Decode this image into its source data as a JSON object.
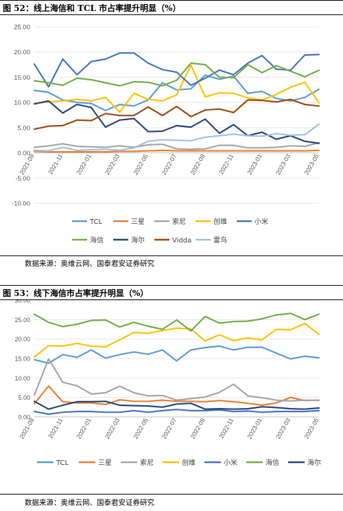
{
  "figures": [
    {
      "title": "图 52：线上海信和 TCL 市占率提升明显（%）",
      "source": "数据来源：奥维云网、国泰君安证券研究"
    },
    {
      "title": "图 53：线下海信市占率提升明显（%）",
      "source": "数据来源：奥维云网、国泰君安证券研究"
    }
  ],
  "chart_data": [
    {
      "type": "line",
      "title": "",
      "xlabel": "",
      "ylabel": "",
      "ylim": [
        -10,
        25
      ],
      "yticks": [
        "25.00",
        "20.00",
        "15.00",
        "10.00",
        "5.00",
        "0.00",
        "-5.00",
        "-10.00"
      ],
      "x": [
        "2021-09",
        "2021-10",
        "2021-11",
        "2021-12",
        "2022-01",
        "2022-02",
        "2022-03",
        "2022-04",
        "2022-05",
        "2022-06",
        "2022-07",
        "2022-08",
        "2022-09",
        "2022-10",
        "2022-11",
        "2022-12",
        "2023-01",
        "2023-02",
        "2023-03",
        "2023-04",
        "2023-05"
      ],
      "xtick_labels": [
        "2021-09",
        "2021-11",
        "2022-01",
        "2022-03",
        "2022-05",
        "2022-07",
        "2022-09",
        "2022-11",
        "2023-01",
        "2023-03",
        "2023-05"
      ],
      "grid": true,
      "legend_position": "bottom",
      "series": [
        {
          "name": "TCL",
          "color": "#5B9BD5",
          "values": [
            12.4,
            12.0,
            10.5,
            10.0,
            9.8,
            8.4,
            9.6,
            9.3,
            10.5,
            13.9,
            12.5,
            12.7,
            15.4,
            14.6,
            15.2,
            11.8,
            12.2,
            10.8,
            10.3,
            11.0,
            12.6
          ]
        },
        {
          "name": "三星",
          "color": "#ED7D31",
          "values": [
            0.3,
            0.2,
            0.2,
            0.2,
            0.2,
            0.2,
            0.3,
            0.3,
            0.4,
            0.5,
            0.4,
            0.4,
            0.4,
            0.4,
            0.4,
            0.4,
            0.4,
            0.4,
            0.4,
            0.4,
            0.5
          ]
        },
        {
          "name": "索尼",
          "color": "#A5A5A5",
          "values": [
            1.1,
            1.4,
            1.8,
            1.3,
            1.2,
            1.1,
            1.4,
            1.1,
            1.6,
            1.7,
            0.8,
            0.7,
            0.8,
            1.5,
            1.5,
            1.0,
            1.0,
            1.1,
            1.4,
            1.3,
            2.0
          ]
        },
        {
          "name": "创维",
          "color": "#FFC000",
          "values": [
            9.8,
            10.1,
            10.3,
            10.6,
            10.3,
            11.0,
            8.1,
            11.8,
            10.6,
            10.3,
            11.5,
            17.4,
            11.1,
            11.9,
            11.8,
            10.9,
            10.5,
            11.6,
            13.0,
            14.0,
            9.9
          ]
        },
        {
          "name": "小米",
          "color": "#4472C4",
          "values": [
            17.6,
            13.1,
            18.6,
            15.5,
            18.1,
            18.6,
            19.8,
            19.8,
            17.8,
            16.5,
            16.0,
            13.4,
            14.8,
            16.4,
            15.5,
            17.8,
            19.3,
            16.6,
            16.4,
            19.4,
            19.5
          ]
        },
        {
          "name": "海信",
          "color": "#70AD47",
          "values": [
            14.3,
            13.9,
            13.4,
            14.8,
            14.5,
            13.9,
            13.3,
            14.1,
            14.0,
            13.3,
            14.4,
            17.8,
            17.5,
            15.0,
            14.9,
            17.5,
            15.9,
            17.3,
            16.2,
            15.1,
            16.4
          ]
        },
        {
          "name": "海尔",
          "color": "#264478",
          "values": [
            9.7,
            10.3,
            7.9,
            9.6,
            9.0,
            5.1,
            6.5,
            6.8,
            4.2,
            4.3,
            5.4,
            5.1,
            6.7,
            3.9,
            5.6,
            3.4,
            4.1,
            2.7,
            3.4,
            2.3,
            1.9
          ]
        },
        {
          "name": "Vidda",
          "color": "#9E480E",
          "values": [
            4.7,
            5.3,
            5.4,
            6.5,
            6.4,
            7.8,
            7.4,
            7.4,
            9.1,
            7.4,
            9.2,
            7.2,
            8.5,
            8.7,
            8.0,
            10.5,
            10.4,
            10.1,
            10.6,
            9.6,
            9.3
          ]
        },
        {
          "name": "雷鸟",
          "color": "#9DC3E6",
          "values": [
            0.5,
            0.4,
            1.1,
            0.5,
            0.6,
            0.7,
            0.5,
            1.0,
            2.3,
            2.6,
            2.5,
            2.4,
            3.1,
            3.4,
            3.7,
            3.4,
            3.3,
            3.8,
            3.5,
            3.6,
            5.7
          ]
        }
      ]
    },
    {
      "type": "line",
      "title": "",
      "xlabel": "",
      "ylabel": "",
      "ylim": [
        0,
        30
      ],
      "yticks": [
        "30.00",
        "25.00",
        "20.00",
        "15.00",
        "10.00",
        "5.00",
        "0.00"
      ],
      "x": [
        "2021-09",
        "2021-10",
        "2021-11",
        "2021-12",
        "2022-01",
        "2022-02",
        "2022-03",
        "2022-04",
        "2022-05",
        "2022-06",
        "2022-07",
        "2022-08",
        "2022-09",
        "2022-10",
        "2022-11",
        "2022-12",
        "2023-01",
        "2023-02",
        "2023-03",
        "2023-04",
        "2023-05"
      ],
      "xtick_labels": [
        "2021-09",
        "2021-11",
        "2022-01",
        "2022-03",
        "2022-05",
        "2022-07",
        "2022-09",
        "2022-11",
        "2023-01",
        "2023-03",
        "2023-05"
      ],
      "grid": true,
      "legend_position": "bottom",
      "series": [
        {
          "name": "TCL",
          "color": "#5B9BD5",
          "values": [
            14.7,
            13.8,
            16.0,
            15.3,
            17.2,
            15.1,
            16.0,
            16.7,
            16.1,
            17.2,
            14.4,
            17.2,
            17.8,
            18.2,
            17.2,
            17.9,
            17.9,
            16.4,
            14.9,
            15.6,
            15.2
          ]
        },
        {
          "name": "三星",
          "color": "#ED7D31",
          "values": [
            3.4,
            7.9,
            3.9,
            3.6,
            3.6,
            3.2,
            4.4,
            4.0,
            4.0,
            4.3,
            4.0,
            4.0,
            3.9,
            4.2,
            3.9,
            3.5,
            3.0,
            3.6,
            5.0,
            4.2,
            4.3
          ]
        },
        {
          "name": "索尼",
          "color": "#A5A5A5",
          "values": [
            5.6,
            14.9,
            8.9,
            8.0,
            5.9,
            6.2,
            7.9,
            6.2,
            5.4,
            5.5,
            4.3,
            4.7,
            5.1,
            6.3,
            8.4,
            5.4,
            4.9,
            4.3,
            4.1,
            4.3,
            4.2
          ]
        },
        {
          "name": "创维",
          "color": "#FFC000",
          "values": [
            15.4,
            18.3,
            18.2,
            18.9,
            18.2,
            18.0,
            19.8,
            21.7,
            21.5,
            22.2,
            22.8,
            22.6,
            19.5,
            21.1,
            19.6,
            20.3,
            19.8,
            22.5,
            22.4,
            24.0,
            21.2
          ]
        },
        {
          "name": "小米",
          "color": "#4472C4",
          "values": [
            1.4,
            0.7,
            1.2,
            1.4,
            1.4,
            1.2,
            1.2,
            1.6,
            1.2,
            1.6,
            1.9,
            1.6,
            1.6,
            1.8,
            1.4,
            1.5,
            1.2,
            1.4,
            1.4,
            1.4,
            1.6
          ]
        },
        {
          "name": "海信",
          "color": "#70AD47",
          "values": [
            26.4,
            24.3,
            23.2,
            23.8,
            24.8,
            24.9,
            23.1,
            24.3,
            23.3,
            22.5,
            24.9,
            22.1,
            25.8,
            24.1,
            24.5,
            24.6,
            25.2,
            26.2,
            26.6,
            25.0,
            26.4
          ]
        },
        {
          "name": "海尔",
          "color": "#264478",
          "values": [
            4.0,
            2.0,
            3.0,
            3.9,
            3.9,
            4.0,
            3.0,
            2.9,
            2.8,
            2.5,
            3.3,
            3.5,
            2.0,
            2.1,
            2.0,
            2.1,
            2.6,
            2.4,
            2.1,
            2.0,
            2.3
          ]
        }
      ]
    }
  ]
}
